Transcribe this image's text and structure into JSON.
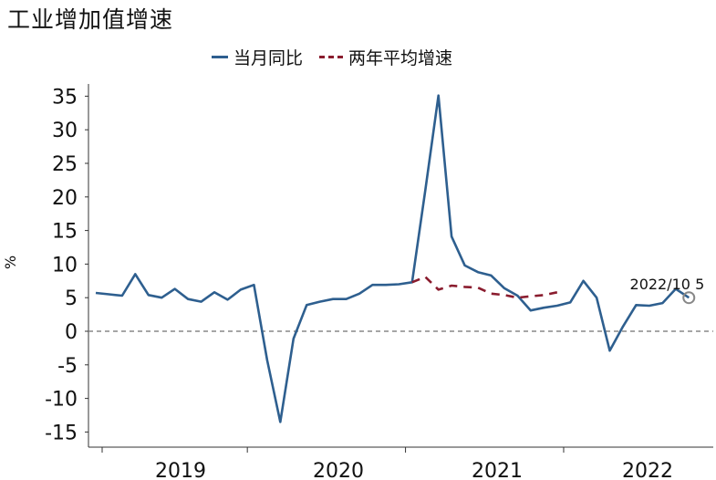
{
  "chart_data": {
    "type": "line",
    "title": "工业增加值增速",
    "ylabel": "%",
    "xlabel": "",
    "ylim": [
      -15,
      35
    ],
    "yticks": [
      35,
      30,
      25,
      20,
      15,
      10,
      5,
      0,
      -5,
      -10,
      -15
    ],
    "zero_line": "dashed",
    "legend": "top-center",
    "grid": false,
    "year_labels": [
      "2019",
      "2020",
      "2021",
      "2022"
    ],
    "x": [
      "2019/01",
      "2019/02",
      "2019/03",
      "2019/04",
      "2019/05",
      "2019/06",
      "2019/07",
      "2019/08",
      "2019/09",
      "2019/10",
      "2019/11",
      "2019/12",
      "2020/01",
      "2020/02",
      "2020/03",
      "2020/04",
      "2020/05",
      "2020/06",
      "2020/07",
      "2020/08",
      "2020/09",
      "2020/10",
      "2020/11",
      "2020/12",
      "2021/01",
      "2021/02",
      "2021/03",
      "2021/04",
      "2021/05",
      "2021/06",
      "2021/07",
      "2021/08",
      "2021/09",
      "2021/10",
      "2021/11",
      "2021/12",
      "2022/01",
      "2022/02",
      "2022/03",
      "2022/04",
      "2022/05",
      "2022/06",
      "2022/07",
      "2022/08",
      "2022/09",
      "2022/10"
    ],
    "series": [
      {
        "name": "当月同比",
        "color": "#2e5f8f",
        "style": "solid",
        "values": [
          5.7,
          5.5,
          5.3,
          8.5,
          5.4,
          5.0,
          6.3,
          4.8,
          4.4,
          5.8,
          4.7,
          6.2,
          6.9,
          -4.3,
          -13.5,
          -1.1,
          3.9,
          4.4,
          4.8,
          4.8,
          5.6,
          6.9,
          6.9,
          7.0,
          7.3,
          21.0,
          35.1,
          14.1,
          9.8,
          8.8,
          8.3,
          6.4,
          5.3,
          3.1,
          3.5,
          3.8,
          4.3,
          7.5,
          5.0,
          -2.9,
          0.7,
          3.9,
          3.8,
          4.2,
          6.3,
          5.0
        ]
      },
      {
        "name": "两年平均增速",
        "color": "#8a1c2e",
        "style": "dashed",
        "values": [
          null,
          null,
          null,
          null,
          null,
          null,
          null,
          null,
          null,
          null,
          null,
          null,
          null,
          null,
          null,
          null,
          null,
          null,
          null,
          null,
          null,
          null,
          null,
          null,
          7.3,
          8.1,
          6.2,
          6.8,
          6.6,
          6.5,
          5.6,
          5.4,
          5.0,
          5.2,
          5.4,
          5.8,
          null,
          null,
          null,
          null,
          null,
          null,
          null,
          null,
          null,
          null
        ]
      }
    ],
    "annotation": {
      "text": "2022/10 5",
      "x": "2022/10",
      "y": 5.0
    }
  }
}
